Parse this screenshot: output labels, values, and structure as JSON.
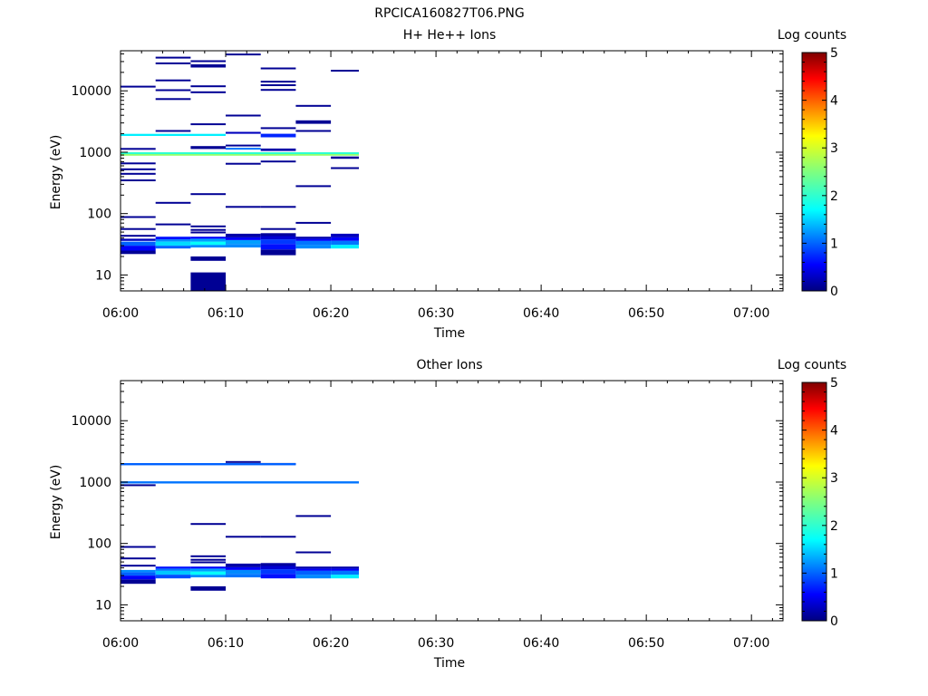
{
  "figure_title": "RPCICA160827T06.PNG",
  "chart_data": [
    {
      "type": "heatmap",
      "title": "H+ He++ Ions",
      "xlabel": "Time",
      "ylabel": "Energy (eV)",
      "x_ticks": [
        "06:00",
        "06:10",
        "06:20",
        "06:30",
        "06:40",
        "06:50",
        "07:00"
      ],
      "xlim": [
        "06:00",
        "07:03"
      ],
      "y_scale": "log",
      "ylim": [
        5.5,
        45000
      ],
      "y_ticks": [
        "10",
        "100",
        "1000",
        "10000"
      ],
      "colorbar": {
        "label": "Log counts",
        "range": [
          0,
          5
        ],
        "ticks": [
          "0",
          "1",
          "2",
          "3",
          "4",
          "5"
        ],
        "colormap": "jet"
      },
      "cells": [
        {
          "t0": "06:00",
          "t1": "06:03:20",
          "e0": 22,
          "e1": 25,
          "v": 0.1
        },
        {
          "t0": "06:00",
          "t1": "06:03:20",
          "e0": 25,
          "e1": 30,
          "v": 0.6
        },
        {
          "t0": "06:00",
          "t1": "06:03:20",
          "e0": 30,
          "e1": 35,
          "v": 1.1
        },
        {
          "t0": "06:00",
          "t1": "06:03:20",
          "e0": 36,
          "e1": 39,
          "v": 0.3
        },
        {
          "t0": "06:00",
          "t1": "06:03:20",
          "e0": 43,
          "e1": 45,
          "v": 0.1
        },
        {
          "t0": "06:00",
          "t1": "06:03:20",
          "e0": 55,
          "e1": 58,
          "v": 0.1
        },
        {
          "t0": "06:00",
          "t1": "06:03:20",
          "e0": 87,
          "e1": 91,
          "v": 0.1
        },
        {
          "t0": "06:00",
          "t1": "06:03:20",
          "e0": 345,
          "e1": 360,
          "v": 0.1
        },
        {
          "t0": "06:00",
          "t1": "06:03:20",
          "e0": 440,
          "e1": 460,
          "v": 0.1
        },
        {
          "t0": "06:00",
          "t1": "06:03:20",
          "e0": 520,
          "e1": 545,
          "v": 0.1
        },
        {
          "t0": "06:00",
          "t1": "06:03:20",
          "e0": 650,
          "e1": 680,
          "v": 0.1
        },
        {
          "t0": "06:00",
          "t1": "06:03:20",
          "e0": 1120,
          "e1": 1170,
          "v": 0.1
        },
        {
          "t0": "06:00",
          "t1": "06:03:20",
          "e0": 11600,
          "e1": 12100,
          "v": 0.1
        },
        {
          "t0": "06:03:20",
          "t1": "06:06:40",
          "e0": 27,
          "e1": 30,
          "v": 1.1
        },
        {
          "t0": "06:03:20",
          "t1": "06:06:40",
          "e0": 30,
          "e1": 35,
          "v": 1.7
        },
        {
          "t0": "06:03:20",
          "t1": "06:06:40",
          "e0": 35,
          "e1": 38,
          "v": 1.3
        },
        {
          "t0": "06:03:20",
          "t1": "06:06:40",
          "e0": 38,
          "e1": 42,
          "v": 0.7
        },
        {
          "t0": "06:03:20",
          "t1": "06:06:40",
          "e0": 66,
          "e1": 69,
          "v": 0.1
        },
        {
          "t0": "06:03:20",
          "t1": "06:06:40",
          "e0": 148,
          "e1": 155,
          "v": 0.1
        },
        {
          "t0": "06:03:20",
          "t1": "06:06:40",
          "e0": 2200,
          "e1": 2300,
          "v": 0.1
        },
        {
          "t0": "06:03:20",
          "t1": "06:06:40",
          "e0": 7300,
          "e1": 7600,
          "v": 0.1
        },
        {
          "t0": "06:03:20",
          "t1": "06:06:40",
          "e0": 10200,
          "e1": 10600,
          "v": 0.1
        },
        {
          "t0": "06:03:20",
          "t1": "06:06:40",
          "e0": 14700,
          "e1": 15300,
          "v": 0.1
        },
        {
          "t0": "06:03:20",
          "t1": "06:06:40",
          "e0": 28000,
          "e1": 29000,
          "v": 0.1
        },
        {
          "t0": "06:03:20",
          "t1": "06:06:40",
          "e0": 34500,
          "e1": 36000,
          "v": 0.1
        },
        {
          "t0": "06:06:40",
          "t1": "06:10",
          "e0": 5.5,
          "e1": 11,
          "v": 0.1
        },
        {
          "t0": "06:06:40",
          "t1": "06:10",
          "e0": 17,
          "e1": 20,
          "v": 0.1
        },
        {
          "t0": "06:06:40",
          "t1": "06:10",
          "e0": 28,
          "e1": 31,
          "v": 1.3
        },
        {
          "t0": "06:06:40",
          "t1": "06:10",
          "e0": 31,
          "e1": 35,
          "v": 1.9
        },
        {
          "t0": "06:06:40",
          "t1": "06:10",
          "e0": 35,
          "e1": 39,
          "v": 1.4
        },
        {
          "t0": "06:06:40",
          "t1": "06:10",
          "e0": 39,
          "e1": 42,
          "v": 0.6
        },
        {
          "t0": "06:06:40",
          "t1": "06:10",
          "e0": 48,
          "e1": 51,
          "v": 0.1
        },
        {
          "t0": "06:06:40",
          "t1": "06:10",
          "e0": 53,
          "e1": 56,
          "v": 0.1
        },
        {
          "t0": "06:06:40",
          "t1": "06:10",
          "e0": 61,
          "e1": 64,
          "v": 0.1
        },
        {
          "t0": "06:06:40",
          "t1": "06:10",
          "e0": 205,
          "e1": 215,
          "v": 0.1
        },
        {
          "t0": "06:06:40",
          "t1": "06:10",
          "e0": 1130,
          "e1": 1260,
          "v": 0.1
        },
        {
          "t0": "06:06:40",
          "t1": "06:10",
          "e0": 2800,
          "e1": 2950,
          "v": 0.1
        },
        {
          "t0": "06:06:40",
          "t1": "06:10",
          "e0": 9400,
          "e1": 9800,
          "v": 0.1
        },
        {
          "t0": "06:06:40",
          "t1": "06:10",
          "e0": 11600,
          "e1": 12300,
          "v": 0.1
        },
        {
          "t0": "06:06:40",
          "t1": "06:10",
          "e0": 24000,
          "e1": 27000,
          "v": 0.1
        },
        {
          "t0": "06:06:40",
          "t1": "06:10",
          "e0": 30000,
          "e1": 31500,
          "v": 0.1
        },
        {
          "t0": "06:10",
          "t1": "06:13:20",
          "e0": 28,
          "e1": 32,
          "v": 1.3
        },
        {
          "t0": "06:10",
          "t1": "06:13:20",
          "e0": 32,
          "e1": 37,
          "v": 1.4
        },
        {
          "t0": "06:10",
          "t1": "06:13:20",
          "e0": 37,
          "e1": 41,
          "v": 0.6
        },
        {
          "t0": "06:10",
          "t1": "06:13:20",
          "e0": 41,
          "e1": 47,
          "v": 0.2
        },
        {
          "t0": "06:10",
          "t1": "06:13:20",
          "e0": 125,
          "e1": 133,
          "v": 0.1
        },
        {
          "t0": "06:10",
          "t1": "06:13:20",
          "e0": 640,
          "e1": 670,
          "v": 0.1
        },
        {
          "t0": "06:10",
          "t1": "06:13:20",
          "e0": 1130,
          "e1": 1180,
          "v": 1.2
        },
        {
          "t0": "06:10",
          "t1": "06:13:20",
          "e0": 1280,
          "e1": 1330,
          "v": 0.1
        },
        {
          "t0": "06:10",
          "t1": "06:13:20",
          "e0": 2000,
          "e1": 2150,
          "v": 0.3
        },
        {
          "t0": "06:10",
          "t1": "06:13:20",
          "e0": 3900,
          "e1": 4100,
          "v": 0.1
        },
        {
          "t0": "06:10",
          "t1": "06:13:20",
          "e0": 38500,
          "e1": 40500,
          "v": 0.1
        },
        {
          "t0": "06:13:20",
          "t1": "06:16:40",
          "e0": 21,
          "e1": 26,
          "v": 0.1
        },
        {
          "t0": "06:13:20",
          "t1": "06:16:40",
          "e0": 26,
          "e1": 32,
          "v": 0.7
        },
        {
          "t0": "06:13:20",
          "t1": "06:16:40",
          "e0": 32,
          "e1": 38,
          "v": 0.9
        },
        {
          "t0": "06:13:20",
          "t1": "06:16:40",
          "e0": 38,
          "e1": 43,
          "v": 0.4
        },
        {
          "t0": "06:13:20",
          "t1": "06:16:40",
          "e0": 43,
          "e1": 48,
          "v": 0.15
        },
        {
          "t0": "06:13:20",
          "t1": "06:16:40",
          "e0": 55,
          "e1": 58,
          "v": 0.1
        },
        {
          "t0": "06:13:20",
          "t1": "06:16:40",
          "e0": 125,
          "e1": 133,
          "v": 0.1
        },
        {
          "t0": "06:13:20",
          "t1": "06:16:40",
          "e0": 700,
          "e1": 730,
          "v": 0.1
        },
        {
          "t0": "06:13:20",
          "t1": "06:16:40",
          "e0": 1050,
          "e1": 1150,
          "v": 0.2
        },
        {
          "t0": "06:13:20",
          "t1": "06:16:40",
          "e0": 1750,
          "e1": 2000,
          "v": 0.8
        },
        {
          "t0": "06:13:20",
          "t1": "06:16:40",
          "e0": 2400,
          "e1": 2550,
          "v": 0.1
        },
        {
          "t0": "06:13:20",
          "t1": "06:16:40",
          "e0": 10300,
          "e1": 10700,
          "v": 0.1
        },
        {
          "t0": "06:13:20",
          "t1": "06:16:40",
          "e0": 12300,
          "e1": 12800,
          "v": 0.1
        },
        {
          "t0": "06:13:20",
          "t1": "06:16:40",
          "e0": 14000,
          "e1": 14600,
          "v": 0.1
        },
        {
          "t0": "06:13:20",
          "t1": "06:16:40",
          "e0": 23000,
          "e1": 24000,
          "v": 0.1
        },
        {
          "t0": "06:16:40",
          "t1": "06:20",
          "e0": 27,
          "e1": 31,
          "v": 1.3
        },
        {
          "t0": "06:16:40",
          "t1": "06:20",
          "e0": 31,
          "e1": 36,
          "v": 1.2
        },
        {
          "t0": "06:16:40",
          "t1": "06:20",
          "e0": 36,
          "e1": 39,
          "v": 0.6
        },
        {
          "t0": "06:16:40",
          "t1": "06:20",
          "e0": 39,
          "e1": 42,
          "v": 0.2
        },
        {
          "t0": "06:16:40",
          "t1": "06:20",
          "e0": 70,
          "e1": 73,
          "v": 0.1
        },
        {
          "t0": "06:16:40",
          "t1": "06:20",
          "e0": 275,
          "e1": 290,
          "v": 0.1
        },
        {
          "t0": "06:16:40",
          "t1": "06:20",
          "e0": 2200,
          "e1": 2300,
          "v": 0.1
        },
        {
          "t0": "06:16:40",
          "t1": "06:20",
          "e0": 2900,
          "e1": 3300,
          "v": 0.1
        },
        {
          "t0": "06:16:40",
          "t1": "06:20",
          "e0": 5700,
          "e1": 5900,
          "v": 0.1
        },
        {
          "t0": "06:20",
          "t1": "06:22:40",
          "e0": 27,
          "e1": 31,
          "v": 1.8
        },
        {
          "t0": "06:20",
          "t1": "06:22:40",
          "e0": 31,
          "e1": 36,
          "v": 1.2
        },
        {
          "t0": "06:20",
          "t1": "06:22:40",
          "e0": 36,
          "e1": 41,
          "v": 0.6
        },
        {
          "t0": "06:20",
          "t1": "06:22:40",
          "e0": 41,
          "e1": 47,
          "v": 0.3
        },
        {
          "t0": "06:20",
          "t1": "06:22:40",
          "e0": 545,
          "e1": 570,
          "v": 0.1
        },
        {
          "t0": "06:20",
          "t1": "06:22:40",
          "e0": 780,
          "e1": 850,
          "v": 0.1
        },
        {
          "t0": "06:20",
          "t1": "06:22:40",
          "e0": 21000,
          "e1": 22000,
          "v": 0.1
        },
        {
          "t0": "06:00",
          "t1": "06:10",
          "e0": 1840,
          "e1": 1990,
          "v": 1.8
        },
        {
          "t0": "06:00",
          "t1": "06:22:40",
          "e0": 880,
          "e1": 940,
          "v": 2.6
        },
        {
          "t0": "06:00",
          "t1": "06:22:40",
          "e0": 940,
          "e1": 1000,
          "v": 2.1
        }
      ]
    },
    {
      "type": "heatmap",
      "title": "Other Ions",
      "xlabel": "Time",
      "ylabel": "Energy (eV)",
      "x_ticks": [
        "06:00",
        "06:10",
        "06:20",
        "06:30",
        "06:40",
        "06:50",
        "07:00"
      ],
      "xlim": [
        "06:00",
        "07:03"
      ],
      "y_scale": "log",
      "ylim": [
        5.5,
        45000
      ],
      "y_ticks": [
        "10",
        "100",
        "1000",
        "10000"
      ],
      "colorbar": {
        "label": "Log counts",
        "range": [
          0,
          5
        ],
        "ticks": [
          "0",
          "1",
          "2",
          "3",
          "4",
          "5"
        ],
        "colormap": "jet"
      },
      "cells": [
        {
          "t0": "06:00",
          "t1": "06:03:20",
          "e0": 22,
          "e1": 26,
          "v": 0.1
        },
        {
          "t0": "06:00",
          "t1": "06:03:20",
          "e0": 26,
          "e1": 30,
          "v": 0.6
        },
        {
          "t0": "06:00",
          "t1": "06:03:20",
          "e0": 30,
          "e1": 34,
          "v": 1.1
        },
        {
          "t0": "06:00",
          "t1": "06:03:20",
          "e0": 34,
          "e1": 37,
          "v": 1.3
        },
        {
          "t0": "06:00",
          "t1": "06:03:20",
          "e0": 43,
          "e1": 45,
          "v": 0.1
        },
        {
          "t0": "06:00",
          "t1": "06:03:20",
          "e0": 56,
          "e1": 59,
          "v": 0.1
        },
        {
          "t0": "06:00",
          "t1": "06:03:20",
          "e0": 87,
          "e1": 91,
          "v": 0.1
        },
        {
          "t0": "06:00",
          "t1": "06:03:20",
          "e0": 860,
          "e1": 920,
          "v": 0.1
        },
        {
          "t0": "06:03:20",
          "t1": "06:06:40",
          "e0": 27,
          "e1": 31,
          "v": 1.0
        },
        {
          "t0": "06:03:20",
          "t1": "06:06:40",
          "e0": 31,
          "e1": 36,
          "v": 1.6
        },
        {
          "t0": "06:03:20",
          "t1": "06:06:40",
          "e0": 36,
          "e1": 39,
          "v": 1.2
        },
        {
          "t0": "06:03:20",
          "t1": "06:06:40",
          "e0": 39,
          "e1": 42,
          "v": 0.7
        },
        {
          "t0": "06:06:40",
          "t1": "06:10",
          "e0": 17,
          "e1": 20,
          "v": 0.1
        },
        {
          "t0": "06:06:40",
          "t1": "06:10",
          "e0": 28,
          "e1": 31,
          "v": 1.3
        },
        {
          "t0": "06:06:40",
          "t1": "06:10",
          "e0": 31,
          "e1": 35,
          "v": 1.9
        },
        {
          "t0": "06:06:40",
          "t1": "06:10",
          "e0": 35,
          "e1": 39,
          "v": 1.4
        },
        {
          "t0": "06:06:40",
          "t1": "06:10",
          "e0": 39,
          "e1": 42,
          "v": 0.6
        },
        {
          "t0": "06:06:40",
          "t1": "06:10",
          "e0": 48,
          "e1": 51,
          "v": 0.1
        },
        {
          "t0": "06:06:40",
          "t1": "06:10",
          "e0": 53,
          "e1": 56,
          "v": 0.1
        },
        {
          "t0": "06:06:40",
          "t1": "06:10",
          "e0": 61,
          "e1": 64,
          "v": 0.1
        },
        {
          "t0": "06:06:40",
          "t1": "06:10",
          "e0": 205,
          "e1": 215,
          "v": 0.1
        },
        {
          "t0": "06:10",
          "t1": "06:13:20",
          "e0": 28,
          "e1": 32,
          "v": 1.2
        },
        {
          "t0": "06:10",
          "t1": "06:13:20",
          "e0": 32,
          "e1": 37,
          "v": 1.3
        },
        {
          "t0": "06:10",
          "t1": "06:13:20",
          "e0": 37,
          "e1": 41,
          "v": 0.6
        },
        {
          "t0": "06:10",
          "t1": "06:13:20",
          "e0": 41,
          "e1": 47,
          "v": 0.2
        },
        {
          "t0": "06:10",
          "t1": "06:13:20",
          "e0": 125,
          "e1": 133,
          "v": 0.1
        },
        {
          "t0": "06:10",
          "t1": "06:13:20",
          "e0": 2080,
          "e1": 2200,
          "v": 0.1
        },
        {
          "t0": "06:13:20",
          "t1": "06:16:40",
          "e0": 27,
          "e1": 32,
          "v": 0.7
        },
        {
          "t0": "06:13:20",
          "t1": "06:16:40",
          "e0": 32,
          "e1": 38,
          "v": 0.9
        },
        {
          "t0": "06:13:20",
          "t1": "06:16:40",
          "e0": 38,
          "e1": 43,
          "v": 0.4
        },
        {
          "t0": "06:13:20",
          "t1": "06:16:40",
          "e0": 43,
          "e1": 48,
          "v": 0.15
        },
        {
          "t0": "06:13:20",
          "t1": "06:16:40",
          "e0": 125,
          "e1": 133,
          "v": 0.1
        },
        {
          "t0": "06:13:20",
          "t1": "06:16:40",
          "e0": 1900,
          "e1": 2050,
          "v": 0.1
        },
        {
          "t0": "06:16:40",
          "t1": "06:20",
          "e0": 27,
          "e1": 31,
          "v": 1.3
        },
        {
          "t0": "06:16:40",
          "t1": "06:20",
          "e0": 31,
          "e1": 36,
          "v": 1.1
        },
        {
          "t0": "06:16:40",
          "t1": "06:20",
          "e0": 36,
          "e1": 39,
          "v": 0.6
        },
        {
          "t0": "06:16:40",
          "t1": "06:20",
          "e0": 39,
          "e1": 42,
          "v": 0.2
        },
        {
          "t0": "06:16:40",
          "t1": "06:20",
          "e0": 70,
          "e1": 74,
          "v": 0.1
        },
        {
          "t0": "06:16:40",
          "t1": "06:20",
          "e0": 275,
          "e1": 290,
          "v": 0.1
        },
        {
          "t0": "06:20",
          "t1": "06:22:40",
          "e0": 27,
          "e1": 31,
          "v": 1.8
        },
        {
          "t0": "06:20",
          "t1": "06:22:40",
          "e0": 31,
          "e1": 36,
          "v": 1.2
        },
        {
          "t0": "06:20",
          "t1": "06:22:40",
          "e0": 36,
          "e1": 39,
          "v": 0.6
        },
        {
          "t0": "06:20",
          "t1": "06:22:40",
          "e0": 39,
          "e1": 42,
          "v": 0.2
        },
        {
          "t0": "06:00",
          "t1": "06:16:40",
          "e0": 1880,
          "e1": 2040,
          "v": 1.1
        },
        {
          "t0": "06:00",
          "t1": "06:22:40",
          "e0": 950,
          "e1": 1030,
          "v": 1.2
        }
      ]
    }
  ]
}
